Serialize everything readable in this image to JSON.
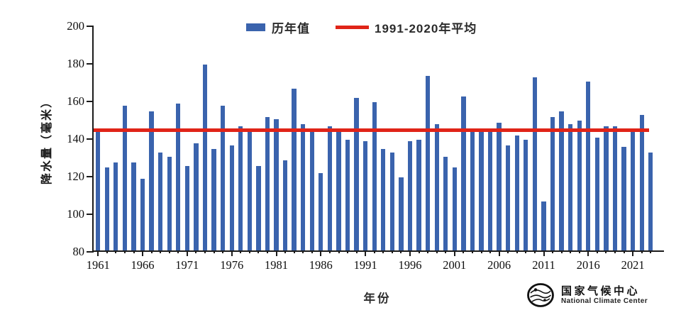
{
  "page": {
    "background": "#ffffff"
  },
  "colors": {
    "bar": "#3a63ad",
    "avg_line": "#e02418",
    "axis": "#1b1b1b",
    "text": "#161616"
  },
  "legend": {
    "series_label": "历年值",
    "avg_label": "1991-2020年平均"
  },
  "axes": {
    "y_title": "降水量（毫米）",
    "x_title": "年份",
    "y_ticks": [
      200,
      180,
      160,
      140,
      120,
      100,
      80
    ],
    "x_tick_years": [
      1961,
      1966,
      1971,
      1976,
      1981,
      1986,
      1991,
      1996,
      2001,
      2006,
      2011,
      2016,
      2021
    ]
  },
  "footer_logo": {
    "cn": "国家气候中心",
    "en": "National Climate Center"
  },
  "chart_data": {
    "type": "bar",
    "title": "",
    "xlabel": "年份",
    "ylabel": "降水量（毫米）",
    "ylim": [
      80,
      200
    ],
    "ytick_step": 20,
    "grid": false,
    "legend_position": "top-center",
    "x": [
      1961,
      1962,
      1963,
      1964,
      1965,
      1966,
      1967,
      1968,
      1969,
      1970,
      1971,
      1972,
      1973,
      1974,
      1975,
      1976,
      1977,
      1978,
      1979,
      1980,
      1981,
      1982,
      1983,
      1984,
      1985,
      1986,
      1987,
      1988,
      1989,
      1990,
      1991,
      1992,
      1993,
      1994,
      1995,
      1996,
      1997,
      1998,
      1999,
      2000,
      2001,
      2002,
      2003,
      2004,
      2005,
      2006,
      2007,
      2008,
      2009,
      2010,
      2011,
      2012,
      2013,
      2014,
      2015,
      2016,
      2017,
      2018,
      2019,
      2020,
      2021,
      2022,
      2023
    ],
    "series": [
      {
        "name": "历年值",
        "values": [
          143,
          124,
          127,
          157,
          127,
          118,
          154,
          132,
          130,
          158,
          125,
          137,
          179,
          134,
          157,
          136,
          146,
          145,
          125,
          151,
          150,
          128,
          166,
          147,
          144,
          121,
          146,
          143,
          139,
          161,
          138,
          159,
          134,
          132,
          119,
          138,
          139,
          173,
          147,
          130,
          124,
          162,
          144,
          145,
          145,
          148,
          136,
          141,
          139,
          172,
          106,
          151,
          154,
          147,
          149,
          170,
          140,
          146,
          146,
          135,
          145,
          152,
          132
        ]
      }
    ],
    "avg_line": {
      "label": "1991-2020年平均",
      "value": 144
    }
  }
}
